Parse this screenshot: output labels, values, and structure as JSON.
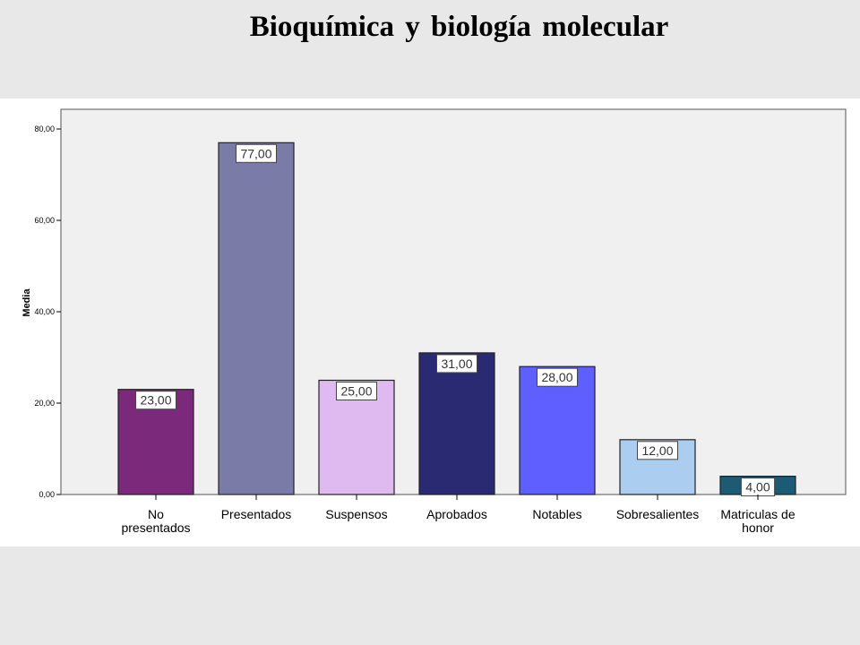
{
  "title": "Bioquímica y biología molecular",
  "chart_data": {
    "type": "bar",
    "title": "Bioquímica y biología molecular",
    "xlabel": "",
    "ylabel": "Media",
    "ylim": [
      0,
      80
    ],
    "yticks": [
      "0,00",
      "20,00",
      "40,00",
      "60,00",
      "80,00"
    ],
    "ytick_values": [
      0,
      20,
      40,
      60,
      80
    ],
    "grid": false,
    "plot_background": "#f0f0f0",
    "categories": [
      [
        "No",
        "presentados"
      ],
      [
        "Presentados"
      ],
      [
        "Suspensos"
      ],
      [
        "Aprobados"
      ],
      [
        "Notables"
      ],
      [
        "Sobresalientes"
      ],
      [
        "Matriculas de",
        "honor"
      ]
    ],
    "values": [
      23,
      77,
      25,
      31,
      28,
      12,
      4
    ],
    "data_labels": [
      "23,00",
      "77,00",
      "25,00",
      "31,00",
      "28,00",
      "12,00",
      "4,00"
    ],
    "colors": [
      "#7b2a7b",
      "#7b7ba8",
      "#dfbaf0",
      "#2a2a72",
      "#5f5fff",
      "#abcdef",
      "#1c5b74"
    ]
  }
}
